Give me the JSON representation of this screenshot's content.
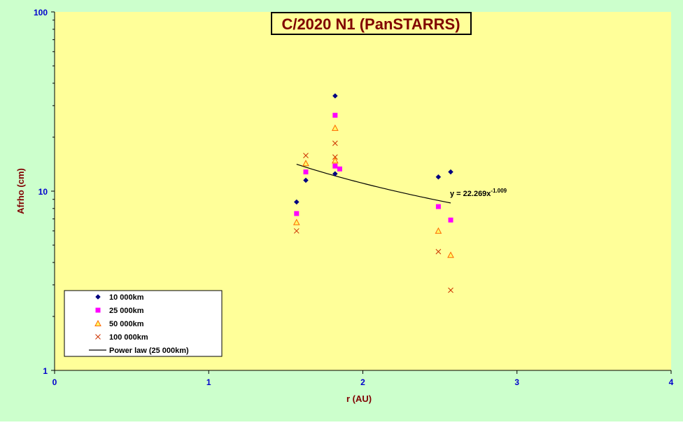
{
  "chart_data": {
    "type": "scatter",
    "title": "C/2020 N1 (PanSTARRS)",
    "xlabel": "r (AU)",
    "ylabel": "Afrho (cm)",
    "xlim": [
      0,
      4
    ],
    "ylim": [
      1,
      100
    ],
    "y_scale": "log",
    "x_ticks": [
      "0",
      "1",
      "2",
      "3",
      "4"
    ],
    "y_ticks": [
      {
        "value": 1,
        "label": "1"
      },
      {
        "value": 10,
        "label": "10"
      },
      {
        "value": 100,
        "label": "100"
      }
    ],
    "colors": {
      "outer_background": "#ccffcc",
      "plot_background": "#ffff99",
      "title_text": "#800000",
      "axis_label_text": "#800000",
      "tick_text": "#0000cc"
    },
    "legend_position": "bottom-left",
    "series": [
      {
        "name": "10 000km",
        "marker": "diamond",
        "color": "#000080",
        "x": [
          1.57,
          1.63,
          1.82,
          1.82,
          2.49,
          2.57
        ],
        "y": [
          8.7,
          11.5,
          34.0,
          12.5,
          12.0,
          12.8
        ]
      },
      {
        "name": "25 000km",
        "marker": "square",
        "color": "#ff00ff",
        "x": [
          1.57,
          1.63,
          1.82,
          1.82,
          1.85,
          2.49,
          2.57
        ],
        "y": [
          7.5,
          12.8,
          26.5,
          13.8,
          13.3,
          8.2,
          6.9
        ]
      },
      {
        "name": "50 000km",
        "marker": "triangle",
        "color": "#ff6600",
        "x": [
          1.57,
          1.63,
          1.82,
          1.82,
          2.49,
          2.57
        ],
        "y": [
          6.7,
          14.3,
          22.5,
          14.8,
          6.0,
          4.4
        ]
      },
      {
        "name": "100 000km",
        "marker": "x",
        "color": "#cc3300",
        "x": [
          1.57,
          1.63,
          1.82,
          1.82,
          2.49,
          2.57
        ],
        "y": [
          6.0,
          15.8,
          18.5,
          15.5,
          4.6,
          2.8
        ]
      }
    ],
    "fit": {
      "name": "Power law (25 000km)",
      "coefficient": 22.269,
      "exponent": -1.009,
      "x_range": [
        1.57,
        2.57
      ],
      "equation_base": "y = 22.269x",
      "equation_exponent": "-1.009"
    }
  }
}
